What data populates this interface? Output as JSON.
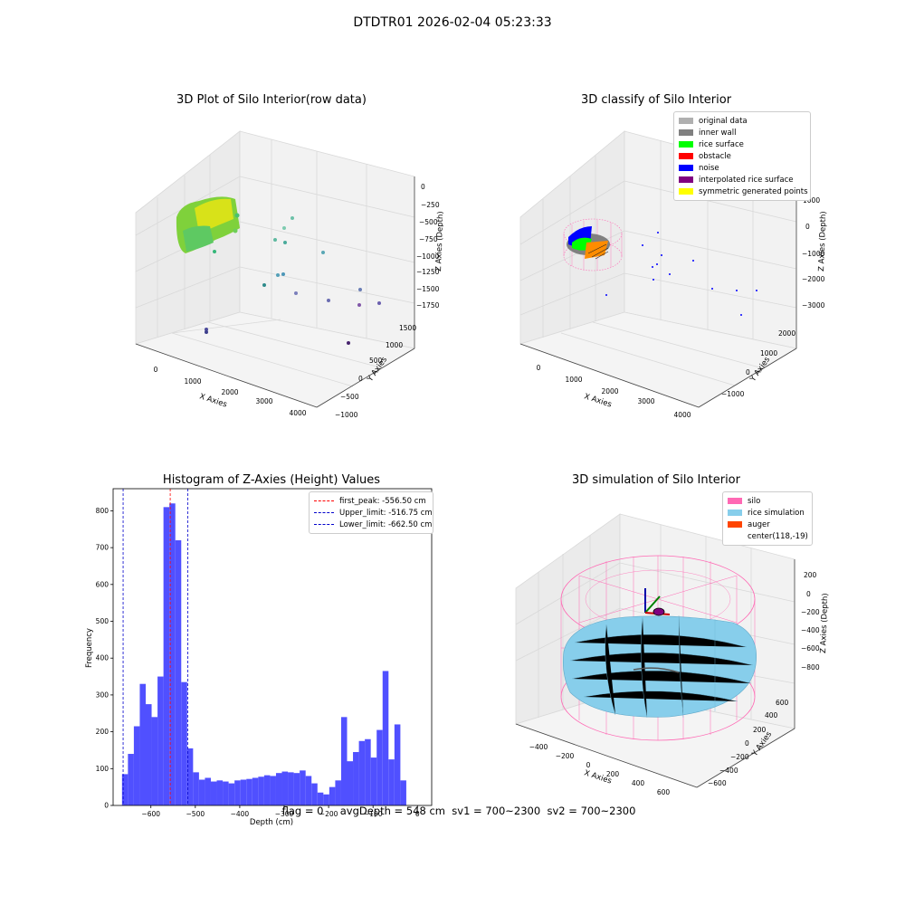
{
  "figure": {
    "suptitle": "DTDTR01 2026-02-04 05:23:33",
    "status_text": "flag = 0     avgDepth = 548 cm  sv1 = 700~2300  sv2 = 700~2300"
  },
  "colors": {
    "histogram_bar": "#5050ff",
    "first_peak_line": "#ff0000",
    "limit_line": "#0000cc",
    "silo": "#ff69b4",
    "rice_simulation": "#87ceeb",
    "auger": "#ff4500"
  },
  "plot1": {
    "title": "3D Plot of Silo Interior(row data)",
    "xlabel": "X Axies",
    "ylabel": "Y Axies",
    "zlabel": "Z Axies (Depth)",
    "xticks": [
      "0",
      "1000",
      "2000",
      "3000",
      "4000"
    ],
    "yticks": [
      "−1000",
      "−500",
      "0",
      "500",
      "1000",
      "1500"
    ],
    "zticks": [
      "0",
      "−250",
      "−500",
      "−750",
      "−1000",
      "−1250",
      "−1500",
      "−1750"
    ]
  },
  "plot2": {
    "title": "3D classify of Silo Interior",
    "xlabel": "X Axies",
    "ylabel": "Y Axies",
    "zlabel": "Z Axies (Depth)",
    "xticks": [
      "0",
      "1000",
      "2000",
      "3000",
      "4000"
    ],
    "yticks": [
      "−1000",
      "0",
      "1000",
      "2000"
    ],
    "zticks": [
      "1000",
      "0",
      "−1000",
      "−2000",
      "−3000"
    ],
    "legend": [
      {
        "label": "original data",
        "color": "#b0b0b0"
      },
      {
        "label": "inner wall",
        "color": "#808080"
      },
      {
        "label": "rice surface",
        "color": "#00ff00"
      },
      {
        "label": "obstacle",
        "color": "#ff0000"
      },
      {
        "label": "noise",
        "color": "#0000ff"
      },
      {
        "label": "interpolated rice surface",
        "color": "#800080"
      },
      {
        "label": "symmetric generated points",
        "color": "#ffff00"
      }
    ]
  },
  "plot4": {
    "title": "3D simulation of Silo Interior",
    "xlabel": "X Axies",
    "ylabel": "Y Axies",
    "zlabel": "Z Axies (Depth)",
    "xticks": [
      "−400",
      "−200",
      "0",
      "200",
      "400",
      "600"
    ],
    "yticks": [
      "−600",
      "−400",
      "−200",
      "0",
      "200",
      "400",
      "600"
    ],
    "zticks": [
      "200",
      "0",
      "−200",
      "−400",
      "−600",
      "−800"
    ],
    "legend": [
      {
        "label": "silo",
        "color": "#ff69b4"
      },
      {
        "label": "rice simulation",
        "color": "#87ceeb"
      },
      {
        "label": "auger",
        "color": "#ff4500"
      },
      {
        "label": "center(118,-19)",
        "color": ""
      }
    ]
  },
  "chart_data": {
    "type": "bar",
    "title": "Histogram of Z-Axies (Height) Values",
    "xlabel": "Depth (cm)",
    "ylabel": "Frequency",
    "xlim": [
      -685,
      32
    ],
    "ylim": [
      0,
      860
    ],
    "xticks": [
      -600,
      -500,
      -400,
      -300,
      -200,
      -100,
      0
    ],
    "xtick_labels": [
      "−600",
      "−500",
      "−400",
      "−300",
      "−200",
      "−100",
      "0"
    ],
    "yticks": [
      0,
      100,
      200,
      300,
      400,
      500,
      600,
      700,
      800
    ],
    "bin_start": -665,
    "bin_width": 13.33,
    "values": [
      85,
      140,
      215,
      330,
      275,
      240,
      350,
      810,
      820,
      720,
      335,
      155,
      90,
      70,
      75,
      65,
      68,
      65,
      60,
      68,
      70,
      72,
      75,
      78,
      82,
      80,
      88,
      92,
      90,
      88,
      95,
      80,
      60,
      35,
      30,
      50,
      68,
      240,
      120,
      145,
      175,
      180,
      130,
      205,
      365,
      125,
      220,
      68
    ],
    "lines": [
      {
        "name": "first_peak: -556.50 cm",
        "x": -556.5,
        "color": "#ff0000"
      },
      {
        "name": "Upper_limit: -516.75 cm",
        "x": -516.75,
        "color": "#0000cc"
      },
      {
        "name": "Lower_limit: -662.50 cm",
        "x": -662.5,
        "color": "#0000cc"
      }
    ],
    "legend_position": "top-right",
    "grid": false
  }
}
